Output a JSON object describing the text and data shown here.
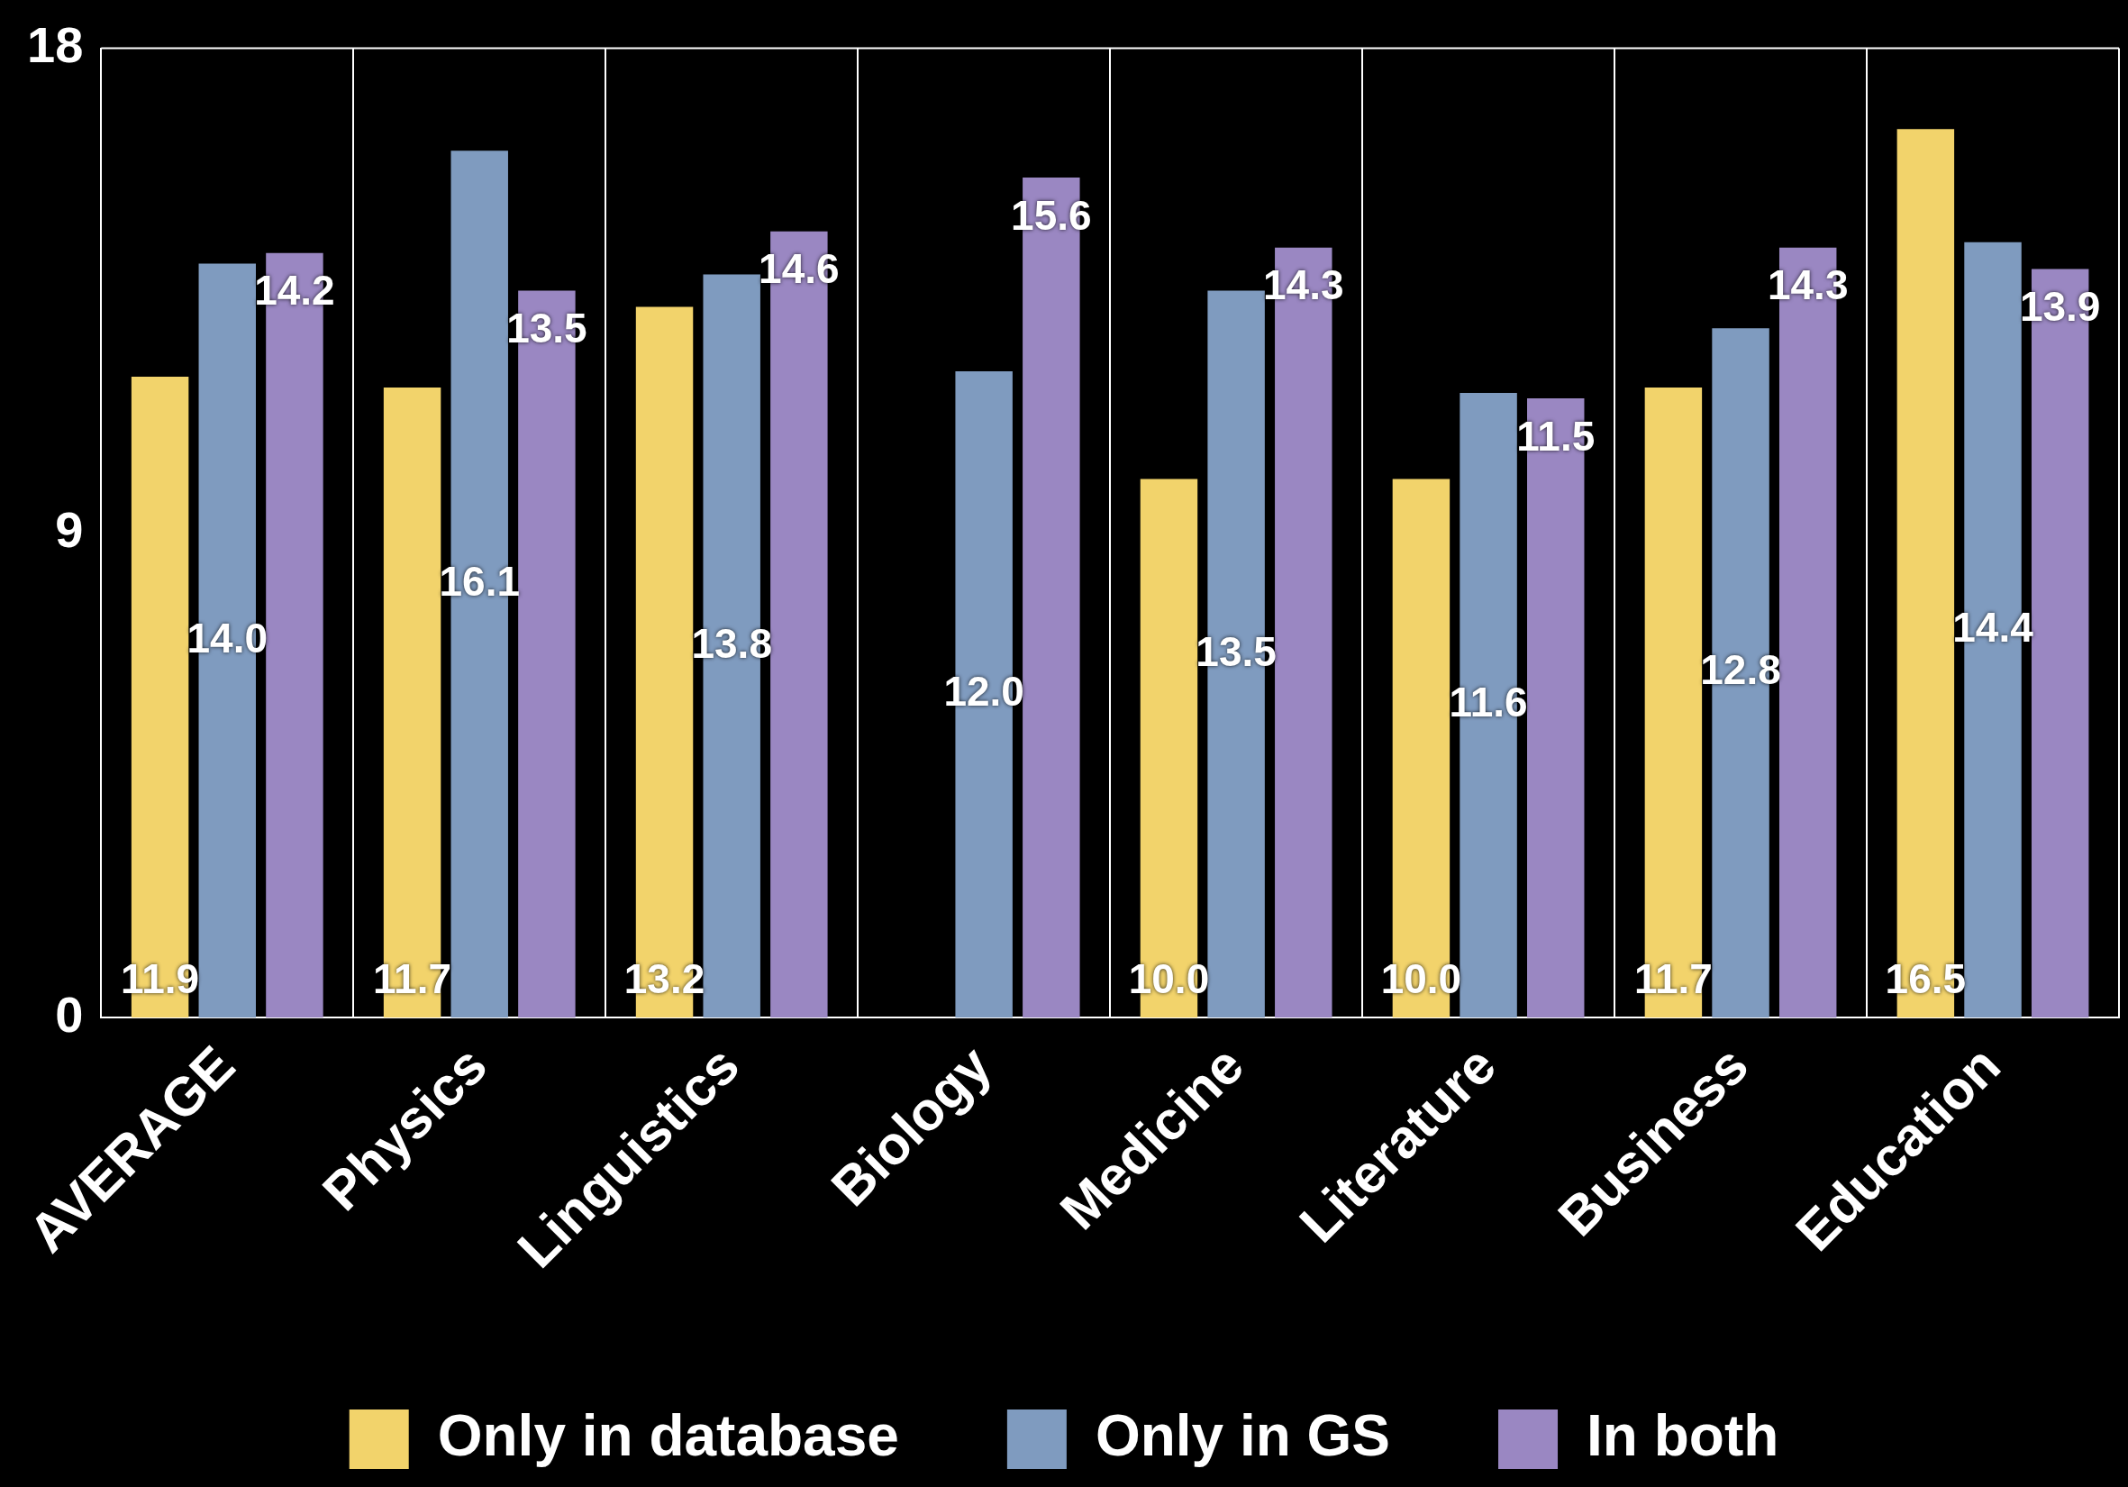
{
  "chart_data": {
    "type": "bar",
    "categories": [
      "AVERAGE",
      "Physics",
      "Linguistics",
      "Biology",
      "Medicine",
      "Literature",
      "Business",
      "Education"
    ],
    "series": [
      {
        "name": "Only in database",
        "color": "#f2d36b",
        "values": [
          11.9,
          11.7,
          13.2,
          null,
          10.0,
          10.0,
          11.7,
          16.5
        ],
        "value_labels": [
          "11.9",
          "11.7",
          "13.2",
          null,
          "10.0",
          "10.0",
          "11.7",
          "16.5"
        ]
      },
      {
        "name": "Only in GS",
        "color": "#7f9bbf",
        "values": [
          14.0,
          16.1,
          13.8,
          12.0,
          13.5,
          11.6,
          12.8,
          14.4
        ],
        "value_labels": [
          "14.0",
          "16.1",
          "13.8",
          "12.0",
          "13.5",
          "11.6",
          "12.8",
          "14.4"
        ]
      },
      {
        "name": "In both",
        "color": "#9a87c2",
        "values": [
          14.2,
          13.5,
          14.6,
          15.6,
          14.3,
          11.5,
          14.3,
          13.9
        ],
        "value_labels": [
          "14.2",
          "13.5",
          "14.6",
          "15.6",
          "14.3",
          "11.5",
          "14.3",
          "13.9"
        ]
      }
    ],
    "ylim": [
      0,
      18
    ],
    "yticks": [
      0,
      9,
      18
    ],
    "grid": "x",
    "legend": "bottom"
  }
}
